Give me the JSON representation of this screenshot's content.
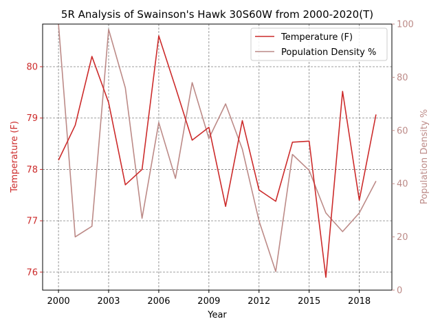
{
  "chart_data": {
    "type": "line",
    "title": "5R Analysis of Swainson's Hawk 30S60W from 2000-2020(T)",
    "xlabel": "Year",
    "ylabel_left": "Temperature (F)",
    "ylabel_right": "Population Density %",
    "x": [
      2000,
      2001,
      2002,
      2003,
      2004,
      2005,
      2006,
      2007,
      2008,
      2009,
      2010,
      2011,
      2012,
      2013,
      2014,
      2015,
      2016,
      2017,
      2018,
      2019
    ],
    "xticks": [
      "2000",
      "2003",
      "2006",
      "2009",
      "2012",
      "2015",
      "2018"
    ],
    "xlim": [
      1999.05,
      2019.95
    ],
    "yticks_left": [
      "76",
      "77",
      "78",
      "79",
      "80"
    ],
    "ylim_left": [
      75.65,
      80.83
    ],
    "yticks_right": [
      "0",
      "20",
      "40",
      "60",
      "80",
      "100"
    ],
    "ylim_right": [
      0,
      100
    ],
    "grid": true,
    "legend_position": "top-right",
    "colors": {
      "temperature": "#cc2a2a",
      "population": "#bc8a87"
    },
    "series": [
      {
        "name": "Temperature (F)",
        "axis": "left",
        "values": [
          78.18,
          78.86,
          80.2,
          79.3,
          77.7,
          78.0,
          80.6,
          79.6,
          78.57,
          78.82,
          77.28,
          78.95,
          77.6,
          77.38,
          78.53,
          78.55,
          75.9,
          79.52,
          77.4,
          79.07
        ]
      },
      {
        "name": "Population Density %",
        "axis": "right",
        "values": [
          100,
          20,
          24,
          98,
          76,
          27,
          63,
          42,
          78,
          57,
          70,
          53,
          26,
          7,
          51,
          45,
          29,
          22,
          29,
          41
        ]
      }
    ]
  }
}
